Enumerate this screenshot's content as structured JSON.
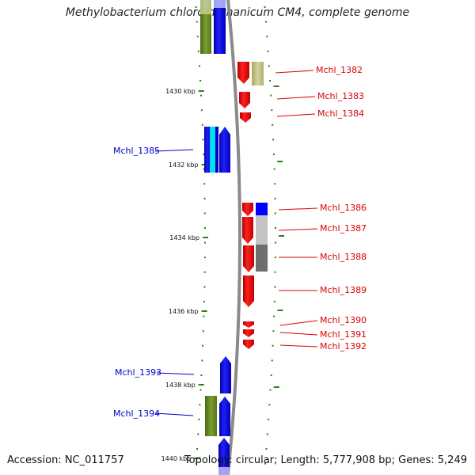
{
  "title": "Methylobacterium chloromethanicum CM4, complete genome",
  "footer": {
    "accession": "Accession: NC_011757",
    "summary": "Topology: circular; Length: 5,777,908 bp; Genes: 5,249"
  },
  "colors": {
    "red": "#ff0000",
    "blue": "#0000ff",
    "cyan": "#00e5ff",
    "olive": "#6b8e23",
    "khaki": "#c8c88a",
    "lightgray": "#c0c0c0",
    "darkgray": "#707070",
    "tick": "#2e7d1e",
    "label_red": "#dd0000",
    "label_blue": "#0000cc"
  },
  "ticks": [
    "1430 kbp",
    "1432 kbp",
    "1434 kbp",
    "1436 kbp",
    "1438 kbp",
    "1440 kbp"
  ],
  "labels_right": [
    "Mchl_1382",
    "Mchl_1383",
    "Mchl_1384",
    "Mchl_1386",
    "Mchl_1387",
    "Mchl_1388",
    "Mchl_1389",
    "Mchl_1390",
    "Mchl_1391",
    "Mchl_1392"
  ],
  "labels_left": [
    "Mchl_1385",
    "Mchl_1393",
    "Mchl_1394"
  ]
}
